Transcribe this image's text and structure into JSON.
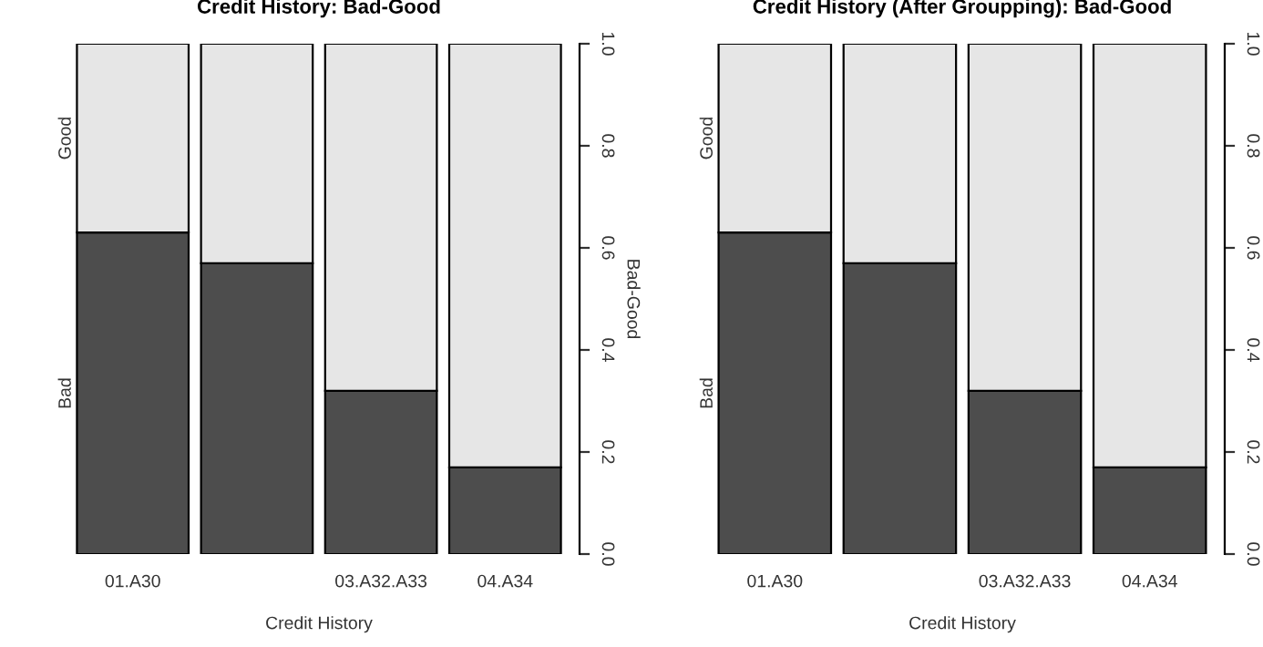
{
  "chart_data": [
    {
      "type": "bar",
      "stacked": true,
      "title": "Credit History: Bad-Good",
      "xlabel": "Credit History",
      "y2label": "Bad-Good",
      "legend": false,
      "categories": [
        "01.A30",
        null,
        "03.A32.A33",
        "04.A34"
      ],
      "y2lim": [
        0,
        1
      ],
      "y2ticks": [
        {
          "value": 0,
          "label": "0.0"
        },
        {
          "value": 0.2,
          "label": "0.2"
        },
        {
          "value": 0.4,
          "label": "0.4"
        },
        {
          "value": 0.6,
          "label": "0.6"
        },
        {
          "value": 0.8,
          "label": "0.8"
        },
        {
          "value": 1,
          "label": "1.0"
        }
      ],
      "series": [
        {
          "name": "Bad",
          "color": "#4d4d4d",
          "axis": "y2",
          "values": [
            0.63,
            0.57,
            0.32,
            0.17
          ]
        },
        {
          "name": "Good",
          "color": "#e6e6e6",
          "axis": "y2",
          "values": [
            0.37,
            0.43,
            0.68,
            0.83
          ]
        }
      ]
    },
    {
      "type": "bar",
      "stacked": true,
      "title": "Credit History (After Groupping): Bad-Good",
      "xlabel": "Credit History",
      "legend": false,
      "categories": [
        "01.A30",
        null,
        "03.A32.A33",
        "04.A34"
      ],
      "y2lim": [
        0,
        1
      ],
      "y2ticks": [
        {
          "value": 0,
          "label": "0.0"
        },
        {
          "value": 0.2,
          "label": "0.2"
        },
        {
          "value": 0.4,
          "label": "0.4"
        },
        {
          "value": 0.6,
          "label": "0.6"
        },
        {
          "value": 0.8,
          "label": "0.8"
        },
        {
          "value": 1,
          "label": "1.0"
        }
      ],
      "series": [
        {
          "name": "Bad",
          "color": "#4d4d4d",
          "axis": "y2",
          "values": [
            0.63,
            0.57,
            0.32,
            0.17
          ]
        },
        {
          "name": "Good",
          "color": "#e6e6e6",
          "axis": "y2",
          "values": [
            0.37,
            0.43,
            0.68,
            0.83
          ]
        }
      ]
    }
  ]
}
